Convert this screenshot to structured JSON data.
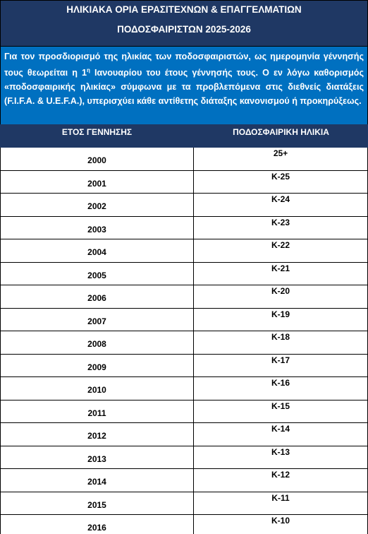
{
  "header": {
    "title_line1": "ΗΛΙΚΙΑΚΑ ΟΡΙΑ ΕΡΑΣΙΤΕΧΝΩΝ & ΕΠΑΓΓΕΛΜΑΤΙΩΝ",
    "title_line2": "ΠΟΔΟΣΦΑΙΡΙΣΤΩΝ 2025-2026"
  },
  "note": {
    "text_before": "Για τον προσδιορισμό της ηλικίας των ποδοσφαιριστών, ως ημερομηνία γέννησής τους θεωρείται η 1",
    "superscript": "η",
    "text_after": " Ιανουαρίου του έτους γέννησής τους. Ο εν λόγω καθορισμός «ποδοσφαιρικής ηλικίας» σύμφωνα με τα προβλεπόμενα στις διεθνείς διατάξεις (F.I.F.A. & U.E.F.A.), υπερισχύει κάθε αντίθετης διάταξης κανονισμού ή προκηρύξεως."
  },
  "table": {
    "columns": [
      "ΕΤΟΣ ΓΕΝΝΗΣΗΣ",
      "ΠΟΔΟΣΦΑΙΡΙΚΗ ΗΛΙΚΙΑ"
    ],
    "rows": [
      [
        "2000",
        "25+"
      ],
      [
        "2001",
        "K-25"
      ],
      [
        "2002",
        "K-24"
      ],
      [
        "2003",
        "K-23"
      ],
      [
        "2004",
        "K-22"
      ],
      [
        "2005",
        "K-21"
      ],
      [
        "2006",
        "K-20"
      ],
      [
        "2007",
        "K-19"
      ],
      [
        "2008",
        "K-18"
      ],
      [
        "2009",
        "K-17"
      ],
      [
        "2010",
        "K-16"
      ],
      [
        "2011",
        "K-15"
      ],
      [
        "2012",
        "K-14"
      ],
      [
        "2013",
        "K-13"
      ],
      [
        "2014",
        "K-12"
      ],
      [
        "2015",
        "K-11"
      ],
      [
        "2016",
        "K-10"
      ]
    ]
  }
}
